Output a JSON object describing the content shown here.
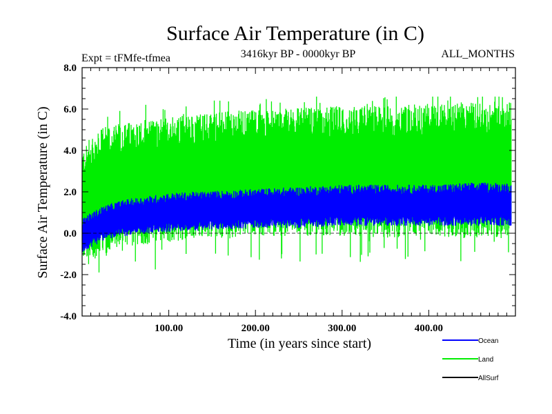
{
  "chart_data": {
    "type": "line",
    "title": "Surface Air Temperature (in C)",
    "subtitle_left": "Expt = tFMfe-tfmea",
    "subtitle_center": "3416kyr BP - 0000kyr BP",
    "subtitle_right": "ALL_MONTHS",
    "xlabel": "Time (in years since start)",
    "ylabel": "Surface Air Temperature (in C)",
    "xlim": [
      0,
      500
    ],
    "ylim": [
      -4.0,
      8.0
    ],
    "x_tick_labels": [
      {
        "value": 100,
        "label": "100.00"
      },
      {
        "value": 200,
        "label": "200.00"
      },
      {
        "value": 300,
        "label": "300.00"
      },
      {
        "value": 400,
        "label": "400.00"
      }
    ],
    "y_tick_labels": [
      {
        "value": 8,
        "label": "8.0"
      },
      {
        "value": 6,
        "label": "6.0"
      },
      {
        "value": 4,
        "label": "4.0"
      },
      {
        "value": 2,
        "label": "2.0"
      },
      {
        "value": 0,
        "label": "0.0"
      },
      {
        "value": -2,
        "label": "-2.0"
      },
      {
        "value": -4,
        "label": "-4.0"
      }
    ],
    "zero_line": 0,
    "series": [
      {
        "name": "Land",
        "color": "#00ee00",
        "x": [
          0,
          25,
          50,
          100,
          150,
          200,
          250,
          300,
          350,
          400,
          450,
          495
        ],
        "upper": [
          3.9,
          5.0,
          5.2,
          5.5,
          5.7,
          5.8,
          5.9,
          6.0,
          6.0,
          6.1,
          6.2,
          6.2
        ],
        "lower": [
          -1.2,
          -1.0,
          -0.6,
          -0.3,
          -0.1,
          0.0,
          0.0,
          0.0,
          -0.1,
          0.0,
          -0.1,
          0.0
        ],
        "spikes_max": 6.6,
        "spikes_min": -2.4
      },
      {
        "name": "Ocean",
        "color": "#0000ff",
        "x": [
          0,
          25,
          50,
          100,
          150,
          200,
          250,
          300,
          350,
          400,
          450,
          495
        ],
        "upper": [
          0.7,
          1.3,
          1.6,
          1.9,
          2.0,
          2.1,
          2.2,
          2.3,
          2.3,
          2.3,
          2.4,
          2.4
        ],
        "lower": [
          -0.9,
          -0.3,
          -0.1,
          0.1,
          0.2,
          0.3,
          0.3,
          0.4,
          0.4,
          0.4,
          0.4,
          0.4
        ]
      },
      {
        "name": "AllSurf",
        "color": "#000000",
        "x": [],
        "upper": [],
        "lower": []
      }
    ],
    "legend": [
      "Ocean",
      "Land",
      "AllSurf"
    ],
    "legend_position": "bottom-right"
  }
}
